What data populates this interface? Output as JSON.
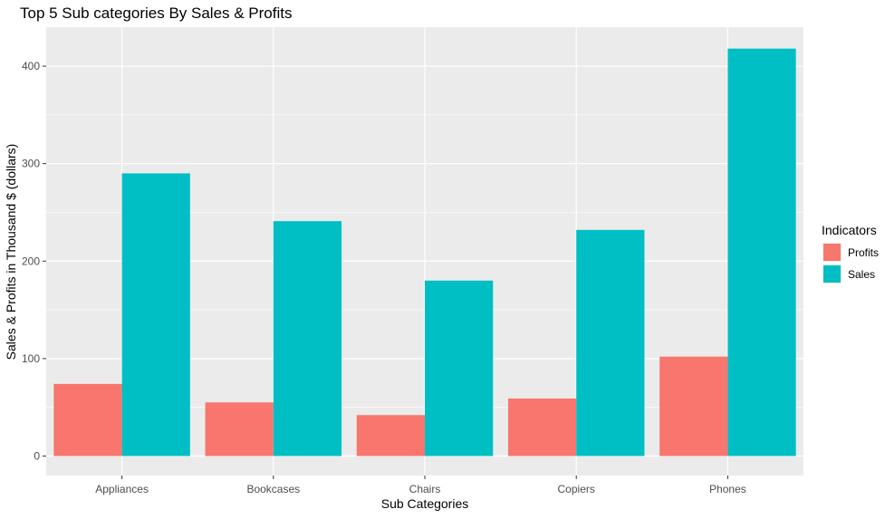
{
  "chart_data": {
    "type": "bar",
    "title": "Top 5 Sub categories By Sales & Profits",
    "xlabel": "Sub Categories",
    "ylabel": "Sales & Profits in Thousand $ (dollars)",
    "categories": [
      "Appliances",
      "Bookcases",
      "Chairs",
      "Copiers",
      "Phones"
    ],
    "series": [
      {
        "name": "Profits",
        "color": "#F8766D",
        "values": [
          74,
          55,
          42,
          59,
          102
        ]
      },
      {
        "name": "Sales",
        "color": "#00BFC4",
        "values": [
          290,
          241,
          180,
          232,
          418
        ]
      }
    ],
    "ylim": [
      -20,
      440
    ],
    "yticks": [
      0,
      100,
      200,
      300,
      400
    ],
    "grid": true,
    "panel_background": "#EBEBEB",
    "legend": {
      "title": "Indicators",
      "position": "right"
    }
  }
}
